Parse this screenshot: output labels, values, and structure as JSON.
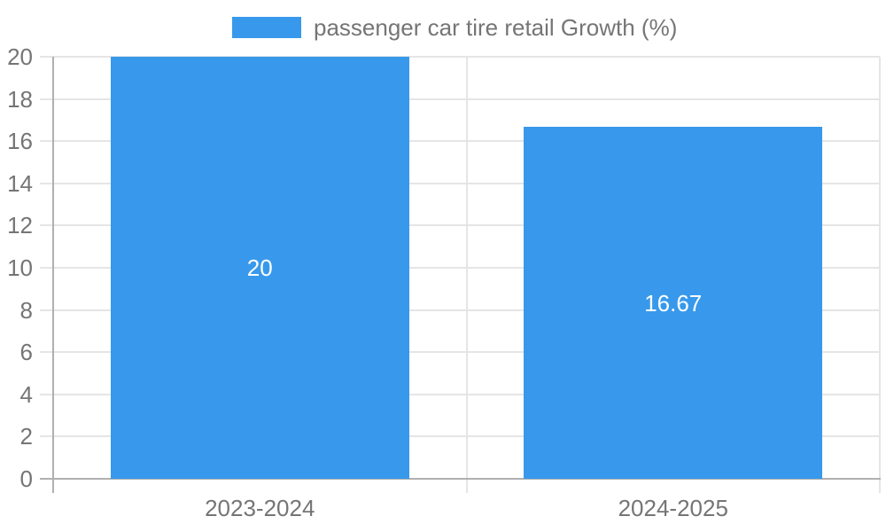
{
  "legend": {
    "label": "passenger car tire retail Growth (%)"
  },
  "colors": {
    "bar": "#3899ec",
    "grid": "#e5e5e5",
    "axis": "#b0b0b0",
    "text": "#757575",
    "bar_label": "#ffffff",
    "background": "#ffffff"
  },
  "chart_data": {
    "type": "bar",
    "title": "",
    "xlabel": "",
    "ylabel": "",
    "categories": [
      "2023-2024",
      "2024-2025"
    ],
    "values": [
      20,
      16.67
    ],
    "value_labels": [
      "20",
      "16.67"
    ],
    "series_name": "passenger car tire retail Growth (%)",
    "ylim": [
      0,
      20
    ],
    "ytick_step": 2,
    "yticks": [
      0,
      2,
      4,
      6,
      8,
      10,
      12,
      14,
      16,
      18,
      20
    ],
    "grid": true,
    "legend_position": "top-center",
    "value_labels_inside_bars": true
  }
}
